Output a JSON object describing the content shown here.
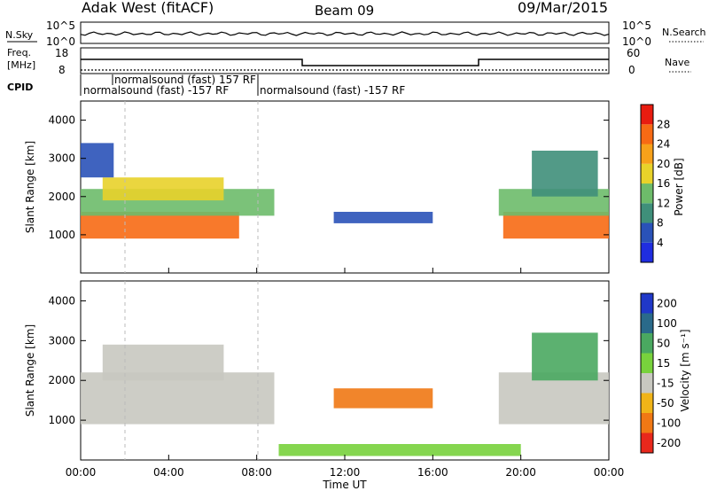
{
  "header": {
    "station": "Adak West (fitACF)",
    "beam": "Beam 09",
    "date": "09/Mar/2015"
  },
  "nsky_panel": {
    "left_label": "N.Sky",
    "right_label": "N.Search",
    "left_ticks": [
      "10^5",
      "10^0"
    ],
    "right_ticks": [
      "10^5",
      "10^0"
    ]
  },
  "freq_panel": {
    "left_label_1": "Freq.",
    "left_label_2": "[MHz]",
    "right_label": "Nave",
    "left_ticks": [
      "18",
      "8"
    ],
    "right_ticks": [
      "60",
      "0"
    ]
  },
  "cpid": {
    "label": "CPID",
    "entries": [
      {
        "text": "normalsound (fast) 157 RF",
        "start_hour": 1.45
      },
      {
        "text": "normalsound (fast) -157 RF",
        "start_hour": 0.0
      },
      {
        "text": "normalsound (fast) -157 RF",
        "start_hour": 8.0
      }
    ]
  },
  "power_panel": {
    "ylabel": "Slant Range [km]",
    "yticks": [
      "1000",
      "2000",
      "3000",
      "4000"
    ],
    "cbar_label": "Power [dB]",
    "cbar_ticks": [
      "4",
      "8",
      "12",
      "16",
      "20",
      "24",
      "28"
    ],
    "cbar_colors": [
      "#1f2de0",
      "#2a52b8",
      "#3f8f7a",
      "#6dbb6a",
      "#e8d22a",
      "#f7a11a",
      "#f76a14",
      "#e81c10"
    ]
  },
  "velocity_panel": {
    "ylabel": "Slant Range [km]",
    "yticks": [
      "1000",
      "2000",
      "3000",
      "4000"
    ],
    "cbar_label": "Velocity [m s⁻¹]",
    "cbar_ticks": [
      "200",
      "100",
      "50",
      "15",
      "-15",
      "-50",
      "-100",
      "-200"
    ],
    "cbar_colors": [
      "#2038c8",
      "#2a6a8a",
      "#4aa860",
      "#78d23c",
      "#c8c8c0",
      "#f0b418",
      "#f07814",
      "#e8281c"
    ]
  },
  "xaxis": {
    "label": "Time UT",
    "ticks": [
      "00:00",
      "04:00",
      "08:00",
      "12:00",
      "16:00",
      "20:00",
      "00:00"
    ]
  },
  "chart_data": {
    "type": "heatmap",
    "x": [
      0,
      24
    ],
    "xlabel": "Time UT",
    "ylabel": "Slant Range [km]",
    "ylim": [
      0,
      4500
    ],
    "series": [
      {
        "panel": "power",
        "units": "dB",
        "regions": [
          {
            "t": [
              0.0,
              7.2
            ],
            "range_km": [
              900,
              1600
            ],
            "value_db": 28
          },
          {
            "t": [
              0.0,
              8.8
            ],
            "range_km": [
              1500,
              2200
            ],
            "value_db": 16
          },
          {
            "t": [
              1.0,
              6.5
            ],
            "range_km": [
              1900,
              2500
            ],
            "value_db": 20
          },
          {
            "t": [
              0.0,
              1.5
            ],
            "range_km": [
              2500,
              3400
            ],
            "value_db": 8
          },
          {
            "t": [
              11.5,
              16.0
            ],
            "range_km": [
              1300,
              1600
            ],
            "value_db": 8
          },
          {
            "t": [
              19.2,
              24.0
            ],
            "range_km": [
              900,
              1600
            ],
            "value_db": 28
          },
          {
            "t": [
              19.0,
              24.0
            ],
            "range_km": [
              1500,
              2200
            ],
            "value_db": 16
          },
          {
            "t": [
              20.5,
              23.5
            ],
            "range_km": [
              2000,
              3200
            ],
            "value_db": 12
          }
        ]
      },
      {
        "panel": "velocity",
        "units": "m s-1",
        "regions": [
          {
            "t": [
              0.0,
              8.8
            ],
            "range_km": [
              900,
              2200
            ],
            "value_ms": 0
          },
          {
            "t": [
              1.0,
              6.5
            ],
            "range_km": [
              2000,
              2900
            ],
            "value_ms": 0
          },
          {
            "t": [
              11.5,
              16.0
            ],
            "range_km": [
              1300,
              1800
            ],
            "value_ms": -60
          },
          {
            "t": [
              19.0,
              24.0
            ],
            "range_km": [
              900,
              2200
            ],
            "value_ms": 0
          },
          {
            "t": [
              20.5,
              23.5
            ],
            "range_km": [
              2000,
              3200
            ],
            "value_ms": 40
          },
          {
            "t": [
              9.0,
              20.0
            ],
            "range_km": [
              100,
              400
            ],
            "value_ms": 20
          }
        ]
      }
    ]
  }
}
